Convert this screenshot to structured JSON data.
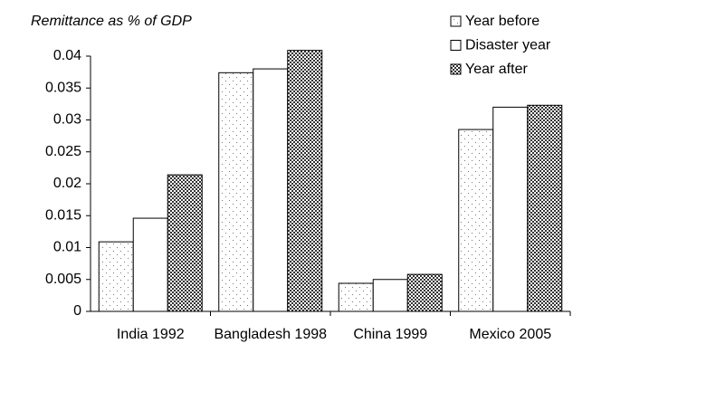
{
  "chart_data": {
    "type": "bar",
    "y_label": "Remittance as % of GDP",
    "categories": [
      "India 1992",
      "Bangladesh 1998",
      "China 1999",
      "Mexico 2005"
    ],
    "series": [
      {
        "name": "Year before",
        "color": "#ffffff",
        "pattern": "sparse-dots",
        "values": [
          0.0109,
          0.0374,
          0.0044,
          0.0285
        ]
      },
      {
        "name": "Disaster year",
        "color": "#ffffff",
        "pattern": "none",
        "values": [
          0.0146,
          0.038,
          0.005,
          0.032
        ]
      },
      {
        "name": "Year after",
        "color": "#ffffff",
        "pattern": "checker",
        "values": [
          0.0214,
          0.0409,
          0.0058,
          0.0323
        ]
      }
    ],
    "ylim": [
      0,
      0.04
    ],
    "yticks": [
      0,
      0.005,
      0.01,
      0.015,
      0.02,
      0.025,
      0.03,
      0.035,
      0.04
    ],
    "grid": false,
    "legend": "top-right"
  }
}
